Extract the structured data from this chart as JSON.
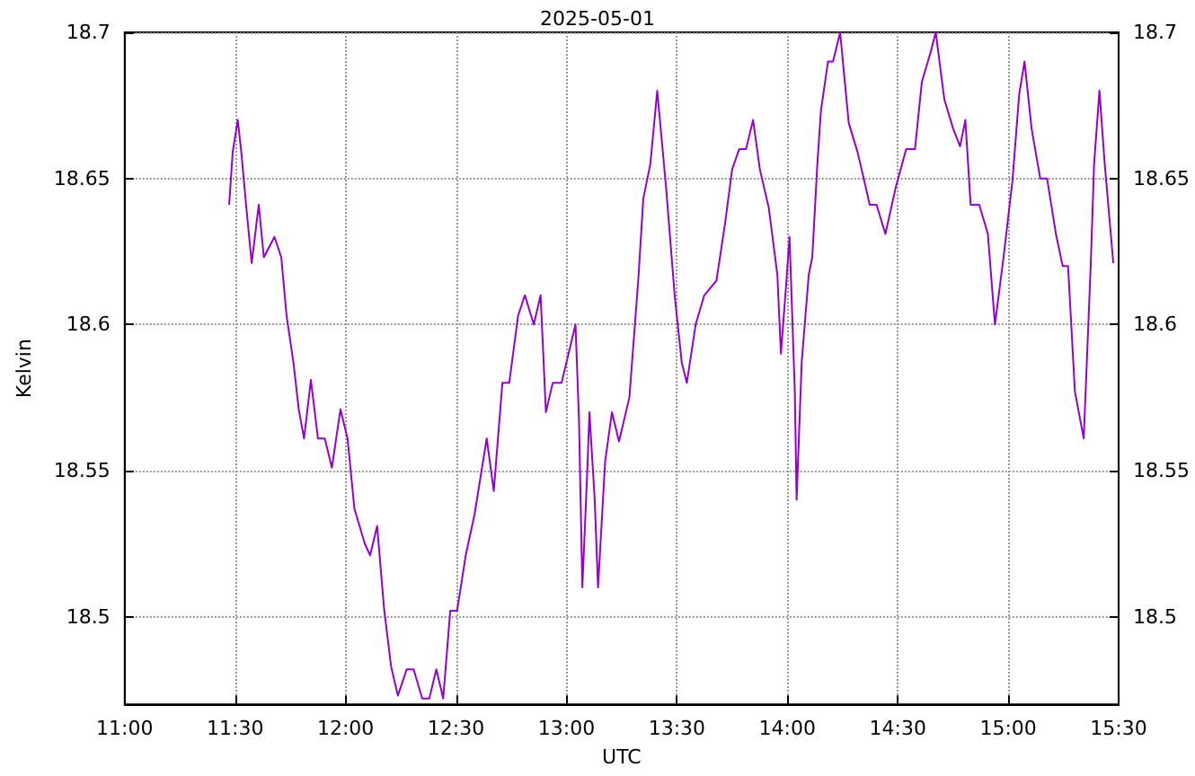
{
  "chart_data": {
    "type": "line",
    "title": "2025-05-01",
    "xlabel": "UTC",
    "ylabel": "Kelvin",
    "x": [
      11.473,
      11.489,
      11.512,
      11.528,
      11.552,
      11.575,
      11.607,
      11.63,
      11.678,
      11.709,
      11.733,
      11.764,
      11.788,
      11.812,
      11.843,
      11.875,
      11.906,
      11.938,
      11.977,
      12.009,
      12.04,
      12.087,
      12.111,
      12.143,
      12.174,
      12.206,
      12.237,
      12.277,
      12.308,
      12.347,
      12.379,
      12.411,
      12.442,
      12.474,
      12.505,
      12.544,
      12.584,
      12.639,
      12.671,
      12.71,
      12.741,
      12.781,
      12.812,
      12.852,
      12.883,
      12.907,
      12.938,
      12.978,
      13.041,
      13.057,
      13.072,
      13.096,
      13.104,
      13.128,
      13.143,
      13.175,
      13.206,
      13.238,
      13.285,
      13.325,
      13.348,
      13.38,
      13.411,
      13.451,
      13.49,
      13.522,
      13.545,
      13.585,
      13.624,
      13.679,
      13.719,
      13.75,
      13.782,
      13.813,
      13.845,
      13.876,
      13.916,
      13.955,
      13.971,
      13.994,
      14.01,
      14.034,
      14.042,
      14.065,
      14.097,
      14.113,
      14.136,
      14.152,
      14.184,
      14.207,
      14.239,
      14.278,
      14.318,
      14.349,
      14.373,
      14.404,
      14.444,
      14.491,
      14.538,
      14.578,
      14.609,
      14.648,
      14.672,
      14.711,
      14.751,
      14.782,
      14.806,
      14.83,
      14.869,
      14.908,
      14.94,
      14.979,
      15.019,
      15.05,
      15.074,
      15.106,
      15.145,
      15.176,
      15.216,
      15.247,
      15.271,
      15.302,
      15.342,
      15.374,
      15.389,
      15.413,
      15.437,
      15.476
    ],
    "series": [
      {
        "color": "#9400d3",
        "values": [
          18.641,
          18.659,
          18.67,
          18.659,
          18.639,
          18.621,
          18.641,
          18.623,
          18.63,
          18.623,
          18.603,
          18.587,
          18.571,
          18.561,
          18.581,
          18.561,
          18.561,
          18.551,
          18.571,
          18.561,
          18.537,
          18.525,
          18.521,
          18.531,
          18.503,
          18.483,
          18.473,
          18.482,
          18.482,
          18.472,
          18.472,
          18.482,
          18.472,
          18.502,
          18.502,
          18.521,
          18.535,
          18.561,
          18.543,
          18.58,
          18.58,
          18.603,
          18.61,
          18.6,
          18.61,
          18.57,
          18.58,
          18.58,
          18.6,
          18.567,
          18.51,
          18.553,
          18.57,
          18.54,
          18.51,
          18.553,
          18.57,
          18.56,
          18.575,
          18.615,
          18.643,
          18.655,
          18.68,
          18.647,
          18.61,
          18.587,
          18.58,
          18.6,
          18.61,
          18.615,
          18.635,
          18.653,
          18.66,
          18.66,
          18.67,
          18.653,
          18.64,
          18.617,
          18.59,
          18.613,
          18.63,
          18.577,
          18.54,
          18.587,
          18.617,
          18.623,
          18.655,
          18.673,
          18.69,
          18.69,
          18.7,
          18.669,
          18.659,
          18.649,
          18.641,
          18.641,
          18.631,
          18.647,
          18.66,
          18.66,
          18.683,
          18.693,
          18.7,
          18.677,
          18.667,
          18.661,
          18.67,
          18.641,
          18.641,
          18.631,
          18.6,
          18.623,
          18.649,
          18.679,
          18.69,
          18.667,
          18.65,
          18.65,
          18.631,
          18.62,
          18.62,
          18.577,
          18.561,
          18.621,
          18.655,
          18.68,
          18.655,
          18.621
        ]
      }
    ],
    "xlim": [
      11,
      15.5
    ],
    "xticks": [
      {
        "value": 11,
        "label": "11:00"
      },
      {
        "value": 11.5,
        "label": "11:30"
      },
      {
        "value": 12,
        "label": "12:00"
      },
      {
        "value": 12.5,
        "label": "12:30"
      },
      {
        "value": 13,
        "label": "13:00"
      },
      {
        "value": 13.5,
        "label": "13:30"
      },
      {
        "value": 14,
        "label": "14:00"
      },
      {
        "value": 14.5,
        "label": "14:30"
      },
      {
        "value": 15,
        "label": "15:00"
      },
      {
        "value": 15.5,
        "label": "15:30"
      }
    ],
    "ylim": [
      18.47,
      18.7
    ],
    "yticks": [
      18.5,
      18.55,
      18.6,
      18.65,
      18.7
    ],
    "y2lim": [
      18.47,
      18.7
    ],
    "y2ticks": [
      18.5,
      18.55,
      18.6,
      18.65,
      18.7
    ],
    "grid": true,
    "line_style": "solid",
    "marker": "none"
  }
}
